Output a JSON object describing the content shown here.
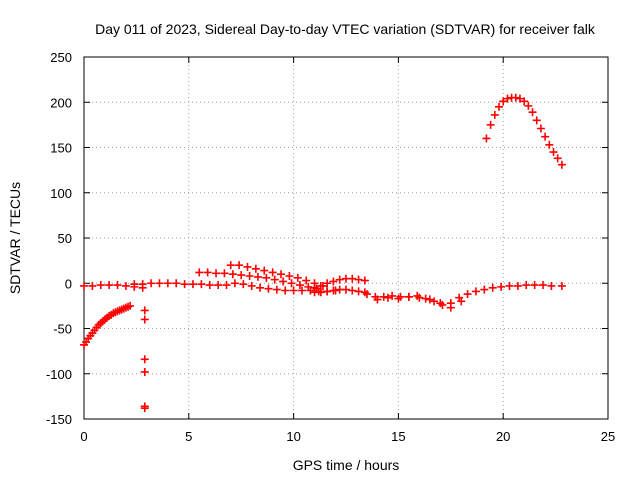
{
  "chart_data": {
    "type": "scatter",
    "title": "Day 011 of 2023, Sidereal Day-to-day VTEC variation (SDTVAR) for receiver falk",
    "xlabel": "GPS time / hours",
    "ylabel": "SDTVAR / TECUs",
    "xlim": [
      0,
      25
    ],
    "ylim": [
      -150,
      250
    ],
    "xticks": [
      0,
      5,
      10,
      15,
      20,
      25
    ],
    "yticks": [
      -150,
      -100,
      -50,
      0,
      50,
      100,
      150,
      200,
      250
    ],
    "grid": true,
    "marker": "+",
    "color": "#ff0000",
    "series": [
      {
        "name": "SDTVAR",
        "x": [
          0.0,
          0.1,
          0.2,
          0.3,
          0.4,
          0.5,
          0.6,
          0.7,
          0.8,
          0.9,
          1.0,
          1.1,
          1.2,
          1.3,
          1.4,
          1.5,
          1.6,
          1.7,
          1.8,
          1.9,
          2.0,
          2.1,
          2.2,
          0.0,
          0.4,
          0.8,
          1.2,
          1.6,
          2.0,
          2.4,
          2.8,
          2.9,
          2.9,
          2.9,
          2.9,
          2.9,
          2.9,
          2.4,
          2.8,
          3.2,
          3.6,
          4.0,
          4.4,
          4.8,
          5.2,
          5.6,
          6.0,
          6.4,
          6.8,
          5.5,
          5.9,
          6.3,
          6.7,
          7.1,
          7.5,
          7.9,
          8.3,
          8.7,
          9.1,
          9.5,
          9.9,
          10.3,
          10.7,
          11.1,
          7.0,
          7.4,
          7.8,
          8.2,
          8.6,
          9.0,
          9.4,
          9.8,
          10.2,
          10.6,
          11.0,
          11.4,
          7.2,
          7.6,
          8.0,
          8.4,
          8.8,
          9.2,
          9.6,
          10.0,
          10.4,
          10.8,
          11.2,
          11.6,
          12.0,
          11.0,
          11.3,
          11.6,
          11.9,
          12.2,
          12.5,
          12.8,
          13.1,
          13.4,
          11.0,
          11.3,
          11.6,
          11.9,
          12.2,
          12.5,
          12.8,
          13.1,
          13.4,
          13.5,
          13.9,
          14.3,
          14.7,
          15.1,
          15.5,
          15.9,
          16.3,
          16.7,
          17.1,
          17.5,
          17.9,
          18.3,
          18.7,
          19.1,
          19.5,
          19.9,
          20.3,
          20.7,
          21.1,
          21.5,
          21.9,
          22.3,
          22.8,
          14.0,
          14.5,
          15.0,
          15.5,
          16.0,
          16.5,
          17.0,
          17.5,
          18.0,
          19.2,
          19.4,
          19.6,
          19.8,
          20.0,
          20.2,
          20.4,
          20.6,
          20.8,
          21.0,
          21.2,
          21.4,
          21.6,
          21.8,
          22.0,
          22.2,
          22.4,
          22.6,
          22.8
        ],
        "y": [
          -68,
          -65,
          -61,
          -58,
          -55,
          -52,
          -49,
          -46,
          -44,
          -42,
          -40,
          -38,
          -36,
          -35,
          -33,
          -32,
          -31,
          -30,
          -29,
          -28,
          -27,
          -26,
          -25,
          -3,
          -3,
          -2,
          -2,
          -2,
          -3,
          -4,
          -5,
          -30,
          -40,
          -84,
          -98,
          -136,
          -138,
          -1,
          -1,
          0,
          0,
          0,
          0,
          -1,
          -1,
          -1,
          -2,
          -2,
          -2,
          12,
          12,
          11,
          11,
          10,
          9,
          8,
          7,
          6,
          4,
          2,
          0,
          -2,
          -4,
          -6,
          20,
          20,
          18,
          16,
          14,
          12,
          10,
          8,
          6,
          3,
          0,
          -3,
          0,
          -1,
          -3,
          -5,
          -6,
          -7,
          -8,
          -8,
          -8,
          -8,
          -9,
          -9,
          -8,
          -5,
          -3,
          0,
          2,
          4,
          5,
          5,
          4,
          3,
          -10,
          -10,
          -9,
          -8,
          -7,
          -7,
          -8,
          -9,
          -10,
          -12,
          -15,
          -15,
          -14,
          -15,
          -15,
          -14,
          -17,
          -20,
          -24,
          -22,
          -16,
          -12,
          -9,
          -7,
          -5,
          -4,
          -3,
          -3,
          -2,
          -2,
          -2,
          -3,
          -3,
          -18,
          -16,
          -17,
          -15,
          -16,
          -18,
          -22,
          -27,
          -20,
          160,
          175,
          186,
          195,
          201,
          204,
          205,
          205,
          204,
          201,
          196,
          189,
          180,
          171,
          162,
          153,
          145,
          138,
          131
        ]
      }
    ]
  }
}
